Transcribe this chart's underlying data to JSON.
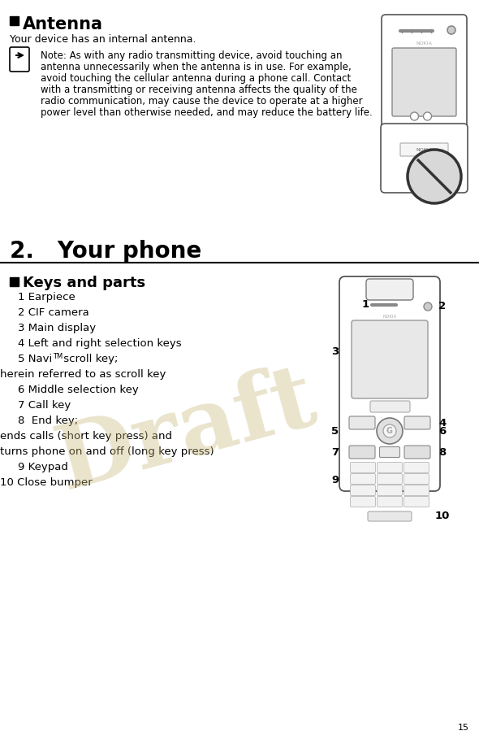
{
  "bg_color": "#ffffff",
  "page_number": "15",
  "section1_header": "Antenna",
  "section1_body1": "Your device has an internal antenna.",
  "note_lines": [
    "Note: As with any radio transmitting device, avoid touching an",
    "antenna unnecessarily when the antenna is in use. For example,",
    "avoid touching the cellular antenna during a phone call. Contact",
    "with a transmitting or receiving antenna affects the quality of the",
    "radio communication, may cause the device to operate at a higher",
    "power level than otherwise needed, and may reduce the battery life."
  ],
  "section2_header": "2.   Your phone",
  "section3_header": "Keys and parts",
  "keys_items": [
    {
      "text": "1 Earpiece",
      "indent": 22,
      "style": "normal"
    },
    {
      "text": "2 CIF camera",
      "indent": 22,
      "style": "normal"
    },
    {
      "text": "3 Main display",
      "indent": 22,
      "style": "normal"
    },
    {
      "text": "4 Left and right selection keys",
      "indent": 22,
      "style": "normal"
    },
    {
      "text": "5 NaviTM scroll key;",
      "indent": 22,
      "style": "navi"
    },
    {
      "text": "herein referred to as scroll key",
      "indent": 0,
      "style": "normal"
    },
    {
      "text": "6 Middle selection key",
      "indent": 22,
      "style": "normal"
    },
    {
      "text": "7 Call key",
      "indent": 22,
      "style": "normal"
    },
    {
      "text": "8  End key;",
      "indent": 22,
      "style": "normal"
    },
    {
      "text": "ends calls (short key press) and",
      "indent": 0,
      "style": "normal"
    },
    {
      "text": "turns phone on and off (long key press)",
      "indent": 0,
      "style": "normal"
    },
    {
      "text": "9 Keypad",
      "indent": 22,
      "style": "normal"
    },
    {
      "text": "10 Close bumper",
      "indent": 0,
      "style": "normal"
    }
  ],
  "draft_text": "Draft",
  "draft_color": "#c8b87a",
  "draft_alpha": 0.38
}
